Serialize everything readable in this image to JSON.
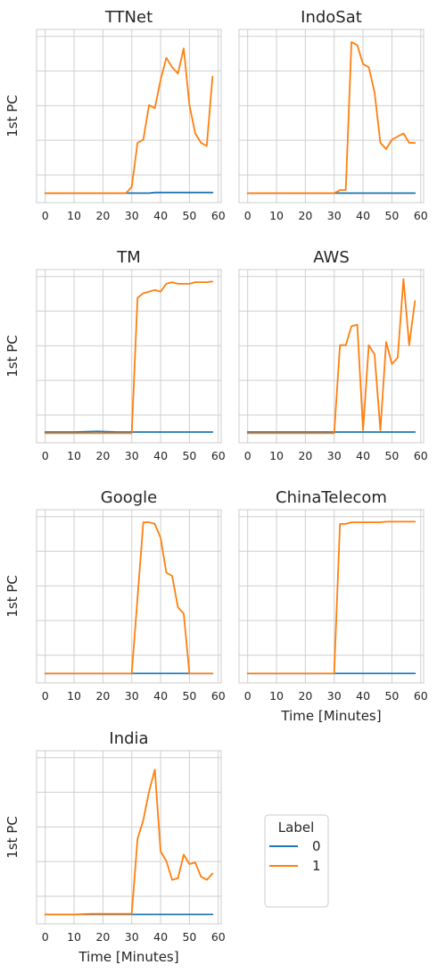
{
  "figure": {
    "grid": true,
    "colors": {
      "label_0": "#1f77b4",
      "label_1": "#ff7f0e",
      "grid": "#cfcfcf",
      "spine": "#cccccc"
    },
    "legend": {
      "title": "Label",
      "placement": "bottom-right",
      "entries": [
        "0",
        "1"
      ]
    }
  },
  "chart_data": [
    {
      "type": "line",
      "title": "TTNet",
      "xlabel": "",
      "ylabel": "1st PC",
      "xticks": [
        "0",
        "10",
        "20",
        "30",
        "40",
        "50",
        "60"
      ],
      "xlim": [
        -3,
        61
      ],
      "ylim": [
        -0.3,
        5.2
      ],
      "series": [
        {
          "name": "0",
          "x": [
            0,
            5,
            10,
            15,
            20,
            25,
            30,
            33,
            36,
            38,
            40,
            45,
            50,
            55,
            58
          ],
          "y": [
            0.0,
            0.0,
            0.0,
            0.0,
            0.0,
            0.0,
            0.0,
            0.0,
            0.0,
            0.02,
            0.02,
            0.02,
            0.02,
            0.02,
            0.02
          ]
        },
        {
          "name": "1",
          "x": [
            0,
            5,
            10,
            15,
            20,
            25,
            28,
            30,
            32,
            34,
            36,
            38,
            40,
            42,
            44,
            46,
            48,
            50,
            52,
            54,
            56,
            58
          ],
          "y": [
            0.0,
            0.0,
            0.0,
            0.0,
            0.0,
            0.0,
            0.0,
            0.2,
            1.6,
            1.7,
            2.8,
            2.7,
            3.6,
            4.3,
            4.0,
            3.8,
            4.6,
            2.8,
            1.9,
            1.6,
            1.5,
            3.7
          ]
        }
      ]
    },
    {
      "type": "line",
      "title": "IndoSat",
      "xlabel": "",
      "ylabel": "",
      "xticks": [
        "0",
        "10",
        "20",
        "30",
        "40",
        "50",
        "60"
      ],
      "xlim": [
        -3,
        61
      ],
      "ylim": [
        -0.3,
        5.2
      ],
      "series": [
        {
          "name": "0",
          "x": [
            0,
            10,
            20,
            30,
            40,
            50,
            58
          ],
          "y": [
            0.0,
            0.0,
            0.0,
            0.0,
            0.0,
            0.0,
            0.0
          ]
        },
        {
          "name": "1",
          "x": [
            0,
            10,
            20,
            30,
            32,
            34,
            36,
            38,
            40,
            42,
            44,
            46,
            48,
            50,
            52,
            54,
            56,
            58
          ],
          "y": [
            0.0,
            0.0,
            0.0,
            0.0,
            0.1,
            0.1,
            4.8,
            4.7,
            4.1,
            4.0,
            3.2,
            1.6,
            1.4,
            1.7,
            1.8,
            1.9,
            1.6,
            1.6
          ]
        }
      ]
    },
    {
      "type": "line",
      "title": "TM",
      "xlabel": "",
      "ylabel": "1st PC",
      "xticks": [
        "0",
        "10",
        "20",
        "30",
        "40",
        "50",
        "60"
      ],
      "xlim": [
        -3,
        61
      ],
      "ylim": [
        -0.3,
        5.2
      ],
      "series": [
        {
          "name": "0",
          "x": [
            0,
            10,
            18,
            25,
            30,
            32,
            40,
            50,
            58
          ],
          "y": [
            0.04,
            0.04,
            0.06,
            0.04,
            0.04,
            0.04,
            0.04,
            0.04,
            0.04
          ]
        },
        {
          "name": "1",
          "x": [
            0,
            10,
            20,
            30,
            32,
            34,
            36,
            38,
            40,
            42,
            44,
            46,
            48,
            50,
            52,
            54,
            56,
            58
          ],
          "y": [
            0.0,
            0.0,
            0.0,
            0.0,
            4.3,
            4.45,
            4.5,
            4.55,
            4.5,
            4.75,
            4.8,
            4.75,
            4.75,
            4.75,
            4.8,
            4.8,
            4.8,
            4.82
          ]
        }
      ]
    },
    {
      "type": "line",
      "title": "AWS",
      "xlabel": "",
      "ylabel": "",
      "xticks": [
        "0",
        "10",
        "20",
        "30",
        "40",
        "50",
        "60"
      ],
      "xlim": [
        -3,
        61
      ],
      "ylim": [
        -0.3,
        5.2
      ],
      "series": [
        {
          "name": "0",
          "x": [
            0,
            10,
            20,
            30,
            40,
            50,
            58
          ],
          "y": [
            0.04,
            0.04,
            0.04,
            0.04,
            0.04,
            0.04,
            0.04
          ]
        },
        {
          "name": "1",
          "x": [
            0,
            10,
            20,
            30,
            32,
            34,
            36,
            38,
            40,
            42,
            44,
            46,
            48,
            50,
            52,
            54,
            56,
            58
          ],
          "y": [
            0.0,
            0.0,
            0.0,
            0.0,
            2.8,
            2.8,
            3.4,
            3.45,
            0.1,
            2.8,
            2.5,
            0.1,
            2.9,
            2.2,
            2.4,
            4.9,
            2.8,
            4.2
          ]
        }
      ]
    },
    {
      "type": "line",
      "title": "Google",
      "xlabel": "",
      "ylabel": "1st PC",
      "xticks": [
        "0",
        "10",
        "20",
        "30",
        "40",
        "50",
        "60"
      ],
      "xlim": [
        -3,
        61
      ],
      "ylim": [
        -0.3,
        5.2
      ],
      "series": [
        {
          "name": "0",
          "x": [
            0,
            10,
            20,
            30,
            40,
            50,
            58
          ],
          "y": [
            0.0,
            0.0,
            0.0,
            0.0,
            0.0,
            0.0,
            0.0
          ]
        },
        {
          "name": "1",
          "x": [
            0,
            10,
            20,
            30,
            34,
            36,
            38,
            40,
            42,
            44,
            46,
            48,
            50,
            52,
            54,
            56,
            58
          ],
          "y": [
            0.0,
            0.0,
            0.0,
            0.0,
            4.8,
            4.8,
            4.75,
            4.3,
            3.2,
            3.1,
            2.1,
            1.9,
            0.0,
            0.0,
            0.0,
            0.0,
            0.0
          ]
        }
      ]
    },
    {
      "type": "line",
      "title": "ChinaTelecom",
      "xlabel": "Time [Minutes]",
      "ylabel": "",
      "xticks": [
        "0",
        "10",
        "20",
        "30",
        "40",
        "50",
        "60"
      ],
      "xlim": [
        -3,
        61
      ],
      "ylim": [
        -0.3,
        5.2
      ],
      "series": [
        {
          "name": "0",
          "x": [
            0,
            10,
            20,
            30,
            40,
            50,
            58
          ],
          "y": [
            0.0,
            0.0,
            0.0,
            0.0,
            0.0,
            0.0,
            0.0
          ]
        },
        {
          "name": "1",
          "x": [
            0,
            10,
            20,
            30,
            32,
            34,
            36,
            40,
            44,
            46,
            48,
            50,
            52,
            54,
            56,
            58
          ],
          "y": [
            0.0,
            0.0,
            0.0,
            0.0,
            4.75,
            4.75,
            4.8,
            4.8,
            4.8,
            4.8,
            4.82,
            4.82,
            4.82,
            4.82,
            4.82,
            4.82
          ]
        }
      ]
    },
    {
      "type": "line",
      "title": "India",
      "xlabel": "Time [Minutes]",
      "ylabel": "1st PC",
      "xticks": [
        "0",
        "10",
        "20",
        "30",
        "40",
        "50",
        "60"
      ],
      "xlim": [
        -3,
        61
      ],
      "ylim": [
        -0.3,
        5.2
      ],
      "series": [
        {
          "name": "0",
          "x": [
            0,
            10,
            20,
            30,
            40,
            50,
            58
          ],
          "y": [
            0.0,
            0.0,
            0.0,
            0.0,
            0.0,
            0.0,
            0.0
          ]
        },
        {
          "name": "1",
          "x": [
            0,
            10,
            16,
            20,
            25,
            30,
            32,
            34,
            36,
            38,
            40,
            42,
            44,
            46,
            48,
            50,
            52,
            54,
            56,
            58
          ],
          "y": [
            0.0,
            0.0,
            0.02,
            0.02,
            0.02,
            0.02,
            2.4,
            3.0,
            3.9,
            4.6,
            2.0,
            1.7,
            1.1,
            1.15,
            1.9,
            1.6,
            1.65,
            1.2,
            1.1,
            1.3
          ]
        }
      ]
    }
  ]
}
